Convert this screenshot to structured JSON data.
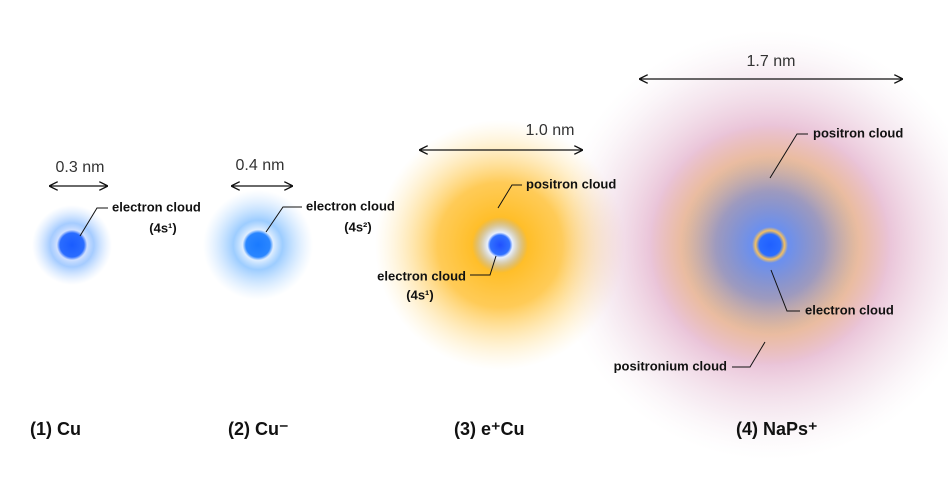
{
  "panels": [
    {
      "label": "(1) Cu",
      "size": "0.3 nm",
      "annotations": [
        "electron cloud",
        "(4s¹)"
      ]
    },
    {
      "label": "(2) Cu⁻",
      "size": "0.4 nm",
      "annotations": [
        "electron cloud",
        "(4s²)"
      ]
    },
    {
      "label": "(3) e⁺Cu",
      "size": "1.0 nm",
      "annotations": [
        "positron cloud",
        "electron cloud",
        "(4s¹)"
      ]
    },
    {
      "label": "(4) NaPs⁺",
      "size": "1.7 nm",
      "annotations": [
        "positron cloud",
        "electron cloud",
        "positronium cloud"
      ]
    }
  ]
}
